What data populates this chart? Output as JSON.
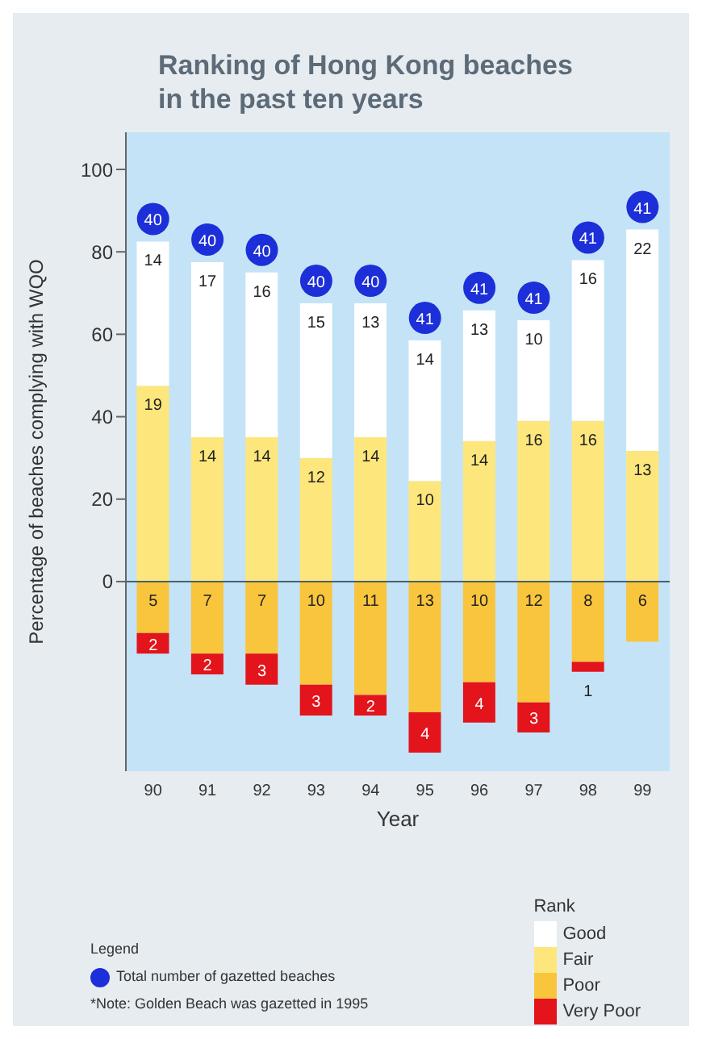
{
  "chart_data": {
    "type": "bar",
    "stacked": true,
    "title": "Ranking of Hong Kong beaches in the past ten years",
    "xlabel": "Year",
    "ylabel": "Percentage of beaches complying with WQO",
    "legend_title": "Rank",
    "legend": "bottom right",
    "categories": [
      "90",
      "91",
      "92",
      "93",
      "94",
      "95",
      "96",
      "97",
      "98",
      "99"
    ],
    "series": [
      {
        "name": "Fair",
        "color": "#fde77c",
        "values": [
          47.5,
          35,
          35,
          30,
          35,
          24.4,
          34.1,
          39,
          39,
          31.7
        ]
      },
      {
        "name": "Good",
        "color": "#ffffff",
        "values": [
          35,
          42.5,
          40,
          37.5,
          32.5,
          34.1,
          31.7,
          24.4,
          39,
          53.7
        ]
      },
      {
        "name": "Poor",
        "color": "#f9c53c",
        "values": [
          -12.5,
          -17.5,
          -17.5,
          -25,
          -27.5,
          -31.7,
          -24.4,
          -29.3,
          -19.5,
          -14.6
        ]
      },
      {
        "name": "Very Poor",
        "color": "#e3141b",
        "values": [
          -5,
          -5,
          -7.5,
          -7.5,
          -5,
          -9.8,
          -9.8,
          -7.3,
          -2.4,
          0
        ]
      }
    ],
    "ylim": [
      -46,
      109
    ],
    "yticks": [
      0,
      20,
      40,
      60,
      80,
      100
    ],
    "ref_lines": [
      {
        "axis": "y",
        "value": 0
      }
    ],
    "annotations": [
      "Legend",
      "Total number of gazetted beaches",
      "*Note: Golden Beach was gazetted in 1995",
      {
        "text": "19",
        "x": "90",
        "y": 47.5
      },
      {
        "text": "14",
        "x": "90",
        "y": 82.5
      },
      {
        "text": "40",
        "x": "90",
        "y": 82.5
      },
      {
        "text": "5",
        "x": "90",
        "y": 0
      },
      {
        "text": "2",
        "x": "90",
        "y": -17.5
      },
      {
        "text": "14",
        "x": "91",
        "y": 35
      },
      {
        "text": "17",
        "x": "91",
        "y": 77.5
      },
      {
        "text": "40",
        "x": "91",
        "y": 77.5
      },
      {
        "text": "7",
        "x": "91",
        "y": 0
      },
      {
        "text": "2",
        "x": "91",
        "y": -22.5
      },
      {
        "text": "14",
        "x": "92",
        "y": 35
      },
      {
        "text": "16",
        "x": "92",
        "y": 75
      },
      {
        "text": "40",
        "x": "92",
        "y": 75
      },
      {
        "text": "7",
        "x": "92",
        "y": 0
      },
      {
        "text": "3",
        "x": "92",
        "y": -25
      },
      {
        "text": "12",
        "x": "93",
        "y": 30
      },
      {
        "text": "15",
        "x": "93",
        "y": 67.5
      },
      {
        "text": "40",
        "x": "93",
        "y": 67.5
      },
      {
        "text": "10",
        "x": "93",
        "y": 0
      },
      {
        "text": "3",
        "x": "93",
        "y": -32.5
      },
      {
        "text": "14",
        "x": "94",
        "y": 35
      },
      {
        "text": "13",
        "x": "94",
        "y": 67.5
      },
      {
        "text": "40",
        "x": "94",
        "y": 67.5
      },
      {
        "text": "11",
        "x": "94",
        "y": 0
      },
      {
        "text": "2",
        "x": "94",
        "y": -32.5
      },
      {
        "text": "10",
        "x": "95",
        "y": 24.4
      },
      {
        "text": "14",
        "x": "95",
        "y": 58.5
      },
      {
        "text": "41",
        "x": "95",
        "y": 58.5
      },
      {
        "text": "13",
        "x": "95",
        "y": 0
      },
      {
        "text": "4",
        "x": "95",
        "y": -41.5
      },
      {
        "text": "14",
        "x": "96",
        "y": 34.1
      },
      {
        "text": "13",
        "x": "96",
        "y": 65.8
      },
      {
        "text": "41",
        "x": "96",
        "y": 65.8
      },
      {
        "text": "10",
        "x": "96",
        "y": 0
      },
      {
        "text": "4",
        "x": "96",
        "y": -34.2
      },
      {
        "text": "16",
        "x": "97",
        "y": 39
      },
      {
        "text": "10",
        "x": "97",
        "y": 63.4
      },
      {
        "text": "41",
        "x": "97",
        "y": 63.4
      },
      {
        "text": "12",
        "x": "97",
        "y": 0
      },
      {
        "text": "3",
        "x": "97",
        "y": -36.6
      },
      {
        "text": "16",
        "x": "98",
        "y": 39
      },
      {
        "text": "16",
        "x": "98",
        "y": 78
      },
      {
        "text": "41",
        "x": "98",
        "y": 78
      },
      {
        "text": "8",
        "x": "98",
        "y": 0
      },
      {
        "text": "1",
        "x": "98",
        "y": -21.9
      },
      {
        "text": "13",
        "x": "99",
        "y": 31.7
      },
      {
        "text": "22",
        "x": "99",
        "y": 85.4
      },
      {
        "text": "41",
        "x": "99",
        "y": 85.4
      },
      {
        "text": "6",
        "x": "99",
        "y": 0
      }
    ]
  }
}
